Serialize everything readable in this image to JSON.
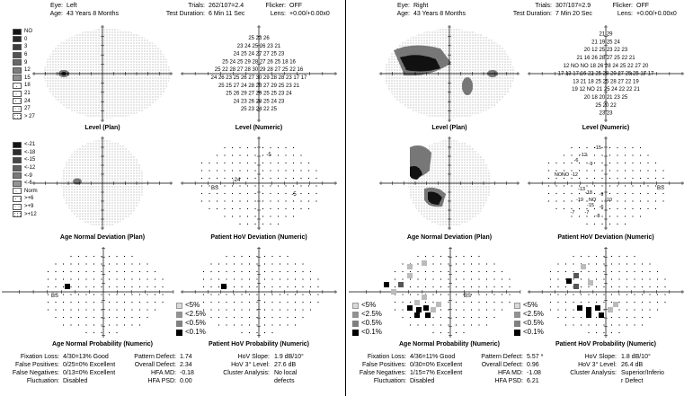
{
  "left": {
    "header": {
      "eye_k": "Eye:",
      "eye_v": "Left",
      "age_k": "Age:",
      "age_v": "43 Years 8 Months",
      "trials_k": "Trials:",
      "trials_v": "262/107=2.4",
      "dur_k": "Test Duration:",
      "dur_v": "6 Min 11 Sec",
      "flicker_k": "Flicker:",
      "flicker_v": "OFF",
      "lens_k": "Lens:",
      "lens_v": "+0.00/+0.00x0"
    },
    "captions": {
      "level_plan": "Level (Plan)",
      "level_numeric": "Level (Numeric)",
      "age_dev_plan": "Age Normal Deviation (Plan)",
      "hov_dev_numeric": "Patient HoV Deviation (Numeric)",
      "age_prob_numeric": "Age Normal Probability (Numeric)",
      "hov_prob_numeric": "Patient HoV Probability (Numeric)"
    },
    "level_numeric_text": [
      "25 23 26",
      "23 24 25 26 23 21",
      "24 25 24 27 27 25 23",
      "25 24 25 29 28 27 26 25 18 16",
      "25 22 28 27 28 30 29 28 27 25 22 16",
      "24 26 23 25 26 27 30 29 28 28 23 17 17",
      "25 25 27 24 28 28 27 29 25 23 21",
      "25 26 29 27 29 25 25 23 24",
      "24 23 26 28 25 24 23",
      "25 23 24 22 25"
    ],
    "hov_numeric_text": [
      "-5",
      "-24",
      "-5"
    ],
    "hov_bs": "BS",
    "age_prob_bs": "BS",
    "stats": {
      "fix_k": "Fixation Loss:",
      "fix_v": "4/30=13% Good",
      "fp_k": "False Positives:",
      "fp_v": "0/25=0% Excellent",
      "fn_k": "False Negatives:",
      "fn_v": "0/13=0% Excellent",
      "fl_k": "Fluctuation:",
      "fl_v": "Disabled",
      "pd_k": "Pattern Defect:",
      "pd_v": "1.74",
      "od_k": "Overall Defect:",
      "od_v": "2.34",
      "md_k": "HFA MD:",
      "md_v": "-0.18",
      "psd_k": "HFA PSD:",
      "psd_v": "0.00",
      "hs_k": "HoV Slope:",
      "hs_v": "1.9 dB/10°",
      "h3_k": "HoV 3° Level:",
      "h3_v": "27.6 dB",
      "ca_k": "Cluster Analysis:",
      "ca_v": "No local",
      "ca_v2": "defects"
    }
  },
  "right": {
    "header": {
      "eye_k": "Eye:",
      "eye_v": "Right",
      "age_k": "Age:",
      "age_v": "43 Years 8 Months",
      "trials_k": "Trials:",
      "trials_v": "307/107=2.9",
      "dur_k": "Test Duration:",
      "dur_v": "7 Min 20 Sec",
      "flicker_k": "Flicker:",
      "flicker_v": "OFF",
      "lens_k": "Lens:",
      "lens_v": "+0.00/+0.00x0"
    },
    "captions": {
      "level_plan": "Level (Plan)",
      "level_numeric": "Level (Numeric)",
      "age_dev_plan": "Age Normal Deviation (Plan)",
      "hov_dev_numeric": "Patient HoV Deviation (Numeric)",
      "age_prob_numeric": "Age Normal Probability (Numeric)",
      "hov_prob_numeric": "Patient HoV Probability (Numeric)"
    },
    "level_numeric_text": [
      "21 29",
      "21 19 25 24",
      "20 12 25 23 22 23",
      "21 16 26 28 27 25 22 21",
      "12 NO NO 18 26 28 24 25 22 27 20",
      "17 13 17 16 22 25 28 29 27 25 25 17 17",
      "13 21 18 25 25 28 27 22 19",
      "19 12 NO 21 25 24 22 22 21",
      "20 18 20 21 23 25",
      "25 20 22",
      "23 23"
    ],
    "hov_numeric_text": [
      "-15",
      "-12",
      "-6",
      "-9",
      "NO",
      "NO",
      "-12",
      "-13",
      "-18",
      "-9",
      "-19",
      "NO",
      "-10",
      "-15",
      "-6",
      "-7",
      "-7",
      "-8"
    ],
    "hov_bs": "BS",
    "age_prob_bs": "BS",
    "stats": {
      "fix_k": "Fixation Loss:",
      "fix_v": "4/36=11% Good",
      "fp_k": "False Positives:",
      "fp_v": "0/30=0% Excellent",
      "fn_k": "False Negatives:",
      "fn_v": "1/15=7% Excellent",
      "fl_k": "Fluctuation:",
      "fl_v": "Disabled",
      "pd_k": "Pattern Defect:",
      "pd_v": "5.57 *",
      "od_k": "Overall Defect:",
      "od_v": "0.96",
      "md_k": "HFA MD:",
      "md_v": "-1.08",
      "psd_k": "HFA PSD:",
      "psd_v": "6.21",
      "hs_k": "HoV Slope:",
      "hs_v": "1.8 dB/10°",
      "h3_k": "HoV 3° Level:",
      "h3_v": "26.4 dB",
      "ca_k": "Cluster Analysis:",
      "ca_v": "Superior/Inferio",
      "ca_v2": "r Defect"
    }
  },
  "level_legend": [
    "NO",
    "0",
    "3",
    "6",
    "9",
    "12",
    "15",
    "18",
    "21",
    "24",
    "27",
    "> 27"
  ],
  "dev_legend": [
    "<-21",
    "<-18",
    "<-15",
    "<-12",
    "<-9",
    "<-6",
    "Norm",
    ">+6",
    ">+9",
    ">+12"
  ],
  "prob_legend": [
    "<5%",
    "<2.5%",
    "<0.5%",
    "<0.1%"
  ]
}
